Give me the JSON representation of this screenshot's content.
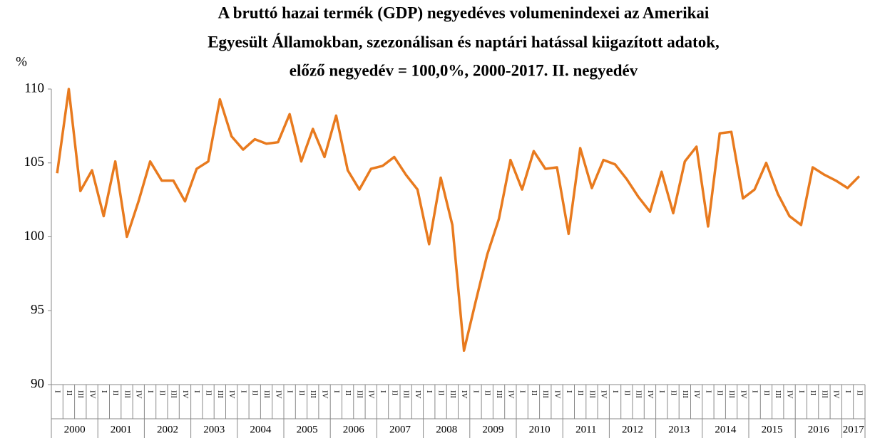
{
  "chart_data": {
    "type": "line",
    "title": [
      "A bruttó hazai termék (GDP) negyedéves volumenindexei  az Amerikai",
      "Egyesült  Államokban, szezonálisan és naptári hatással kiigazított  adatok,",
      "előző negyedév = 100,0%, 2000-2017. II. negyedév"
    ],
    "y_label": "%",
    "categories": [
      "I",
      "II",
      "III",
      "IV",
      "I",
      "II",
      "III",
      "IV",
      "I",
      "II",
      "III",
      "IV",
      "I",
      "II",
      "III",
      "IV",
      "I",
      "II",
      "III",
      "IV",
      "I",
      "II",
      "III",
      "IV",
      "I",
      "II",
      "III",
      "IV",
      "I",
      "II",
      "III",
      "IV",
      "I",
      "II",
      "III",
      "IV",
      "I",
      "II",
      "III",
      "IV",
      "I",
      "II",
      "III",
      "IV",
      "I",
      "II",
      "III",
      "IV",
      "I",
      "II",
      "III",
      "IV",
      "I",
      "II",
      "III",
      "IV",
      "I",
      "II",
      "III",
      "IV",
      "I",
      "II",
      "III",
      "IV",
      "I",
      "II",
      "III",
      "IV",
      "I",
      "II"
    ],
    "year_labels": [
      "2000",
      "2001",
      "2002",
      "2003",
      "2004",
      "2005",
      "2006",
      "2007",
      "2008",
      "2009",
      "2010",
      "2011",
      "2012",
      "2013",
      "2014",
      "2015",
      "2016",
      "2017"
    ],
    "series": [
      {
        "name": "GDP",
        "color": "#e87a1e",
        "values": [
          104.3,
          110,
          103.1,
          104.5,
          101.4,
          105.1,
          100,
          102.4,
          105.1,
          103.8,
          103.8,
          102.4,
          104.6,
          105.1,
          109.3,
          106.8,
          105.9,
          106.6,
          106.3,
          106.4,
          108.3,
          105.1,
          107.3,
          105.4,
          108.2,
          104.5,
          103.2,
          104.6,
          104.8,
          105.4,
          104.2,
          103.2,
          99.5,
          104,
          100.8,
          92.3,
          95.6,
          98.8,
          101.2,
          105.2,
          103.2,
          105.8,
          104.6,
          104.7,
          100.2,
          106,
          103.3,
          105.2,
          104.9,
          103.9,
          102.7,
          101.7,
          104.4,
          101.6,
          105.1,
          106.1,
          100.7,
          107,
          107.1,
          102.6,
          103.2,
          105,
          102.9,
          101.4,
          100.8,
          104.7,
          104.2,
          103.8,
          103.3,
          104.1
        ]
      }
    ],
    "ylim": [
      90,
      110
    ],
    "yticks": [
      90,
      95,
      100,
      105,
      110
    ]
  }
}
